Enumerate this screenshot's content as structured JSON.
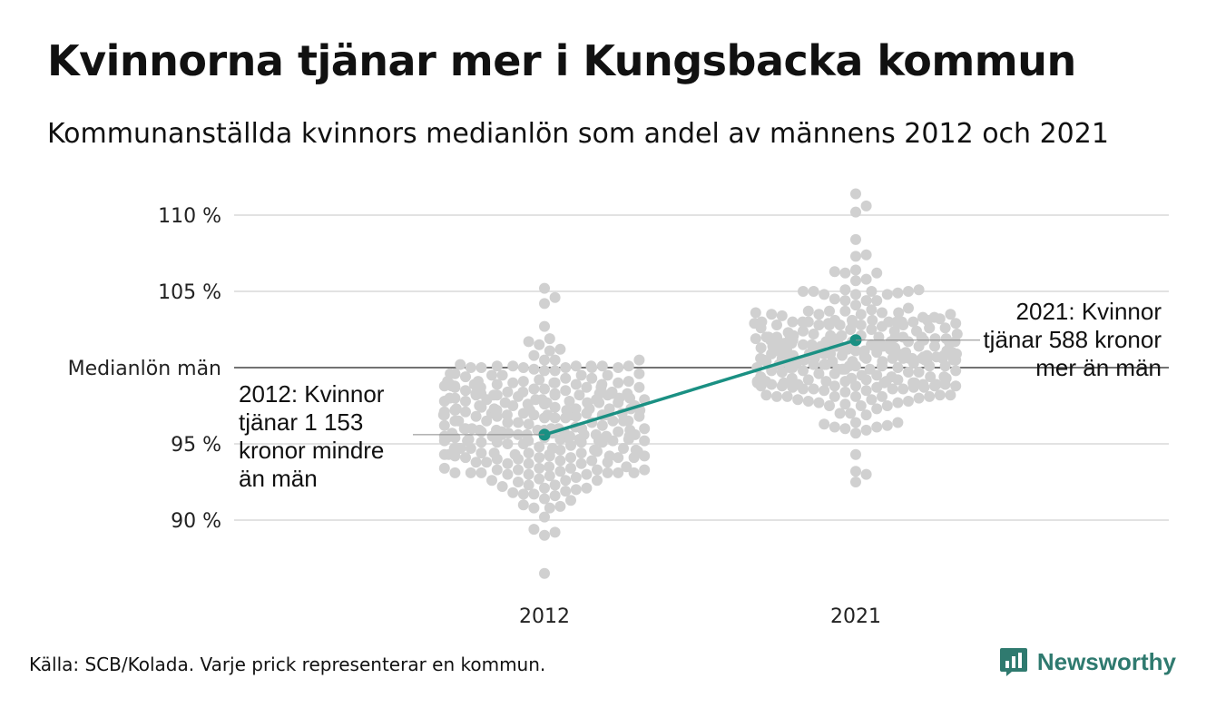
{
  "title": "Kvinnorna tjänar mer i Kungsbacka kommun",
  "subtitle": "Kommunanställda kvinnors medianlön som andel av männens 2012 och 2021",
  "source": "Källa: SCB/Kolada. Varje prick representerar en kommun.",
  "brand": {
    "name": "Newsworthy",
    "icon": "newsworthy-logo-icon",
    "color": "#2f7a6f"
  },
  "colors": {
    "dots": "#d0d0d0",
    "highlight": "#1a9083",
    "grid": "#e2e2e2",
    "reference": "#444444"
  },
  "chart_data": {
    "type": "scatter",
    "subtype": "beeswarm",
    "categories": [
      "2012",
      "2021"
    ],
    "y_tick_labels": [
      "90 %",
      "95 %",
      "105 %",
      "110 %"
    ],
    "y_ticks": [
      90,
      95,
      105,
      110
    ],
    "ylim": [
      86,
      111.5
    ],
    "grid": true,
    "reference_line": {
      "value": 100,
      "label": "Medianlön män"
    },
    "swarms": [
      {
        "category": "2012",
        "min": 86.5,
        "max": 105.2,
        "approx_center": 96.2,
        "highlight": {
          "name": "Kungsbacka",
          "value": 95.6
        }
      },
      {
        "category": "2021",
        "min": 92.5,
        "max": 111.4,
        "approx_center": 101,
        "highlight": {
          "name": "Kungsbacka",
          "value": 101.8
        }
      }
    ],
    "annotations": [
      {
        "category": "2012",
        "lines": [
          "2012: Kvinnor",
          "tjänar 1 153",
          "kronor mindre",
          "än män"
        ]
      },
      {
        "category": "2021",
        "lines": [
          "2021: Kvinnor",
          "tjänar 588 kronor",
          "mer än män"
        ]
      }
    ]
  }
}
